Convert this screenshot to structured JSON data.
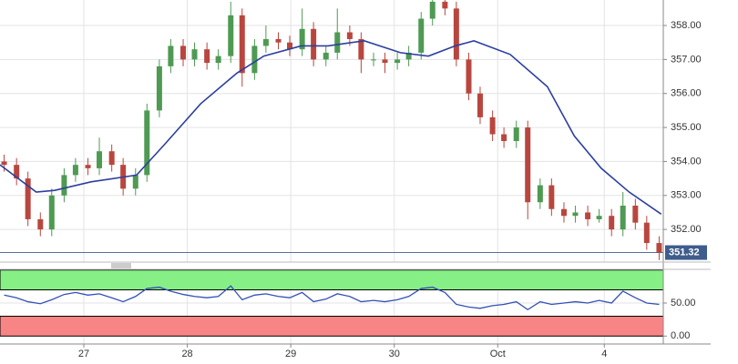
{
  "chart_data": [
    {
      "type": "candlestick",
      "x": [
        0.23,
        0.35,
        0.46,
        0.58,
        0.69,
        0.81,
        0.92,
        1.04,
        1.15,
        1.27,
        1.38,
        1.5,
        1.61,
        1.73,
        1.84,
        1.96,
        2.07,
        2.19,
        2.3,
        2.42,
        2.53,
        2.65,
        2.76,
        2.88,
        2.99,
        3.11,
        3.22,
        3.34,
        3.45,
        3.57,
        3.68,
        3.8,
        3.91,
        4.03,
        4.14,
        4.26,
        4.37,
        4.49,
        4.6,
        4.72,
        4.83,
        4.95,
        5.06,
        5.18,
        5.29,
        5.41,
        5.52,
        5.64,
        5.75,
        5.87,
        5.98,
        6.1,
        6.21,
        6.33,
        6.44,
        6.56
      ],
      "open": [
        354.0,
        353.9,
        353.5,
        352.3,
        352.0,
        353.0,
        353.6,
        353.9,
        353.8,
        354.3,
        353.9,
        353.2,
        353.6,
        355.5,
        356.8,
        357.4,
        357.0,
        357.3,
        356.9,
        357.1,
        358.3,
        356.6,
        357.4,
        357.6,
        357.5,
        357.3,
        357.9,
        357.0,
        357.2,
        357.8,
        357.6,
        357.0,
        357.0,
        356.9,
        357.0,
        357.2,
        358.2,
        358.7,
        358.5,
        357.0,
        356.0,
        355.3,
        354.8,
        354.6,
        355.0,
        352.8,
        353.3,
        352.6,
        352.4,
        352.5,
        352.3,
        352.4,
        352.0,
        352.7,
        352.2,
        351.6
      ],
      "high": [
        354.2,
        354.1,
        353.7,
        352.5,
        353.2,
        353.8,
        354.1,
        354.1,
        354.7,
        354.5,
        354.1,
        353.8,
        355.7,
        357.0,
        357.6,
        357.6,
        357.5,
        357.5,
        357.3,
        358.7,
        358.5,
        357.6,
        358.0,
        357.8,
        357.7,
        358.5,
        358.1,
        357.4,
        358.5,
        358.0,
        357.8,
        357.2,
        357.2,
        357.2,
        357.4,
        358.4,
        358.9,
        358.9,
        358.7,
        357.2,
        356.2,
        355.5,
        355.0,
        355.2,
        355.2,
        353.5,
        353.5,
        352.8,
        352.7,
        352.7,
        352.6,
        352.6,
        353.1,
        352.9,
        352.4,
        351.8
      ],
      "low": [
        353.7,
        353.3,
        352.1,
        351.8,
        351.8,
        352.8,
        353.4,
        353.6,
        353.6,
        353.7,
        353.0,
        353.0,
        353.4,
        355.3,
        356.6,
        356.8,
        356.8,
        356.7,
        356.7,
        356.9,
        356.2,
        356.4,
        357.2,
        357.3,
        357.1,
        357.1,
        356.8,
        356.8,
        357.0,
        357.4,
        356.6,
        356.8,
        356.6,
        356.7,
        356.8,
        357.0,
        358.0,
        358.3,
        356.8,
        355.8,
        355.1,
        354.6,
        354.4,
        354.4,
        352.3,
        352.6,
        352.4,
        352.2,
        352.2,
        352.1,
        352.2,
        351.8,
        351.8,
        352.0,
        351.4,
        351.1
      ],
      "close": [
        353.9,
        353.5,
        352.3,
        352.0,
        353.0,
        353.6,
        353.9,
        353.8,
        354.3,
        353.9,
        353.2,
        353.6,
        355.5,
        356.8,
        357.4,
        357.0,
        357.3,
        356.9,
        357.1,
        358.3,
        356.6,
        357.4,
        357.6,
        357.5,
        357.3,
        357.9,
        357.0,
        357.2,
        357.8,
        357.6,
        357.0,
        357.0,
        356.9,
        357.0,
        357.2,
        358.2,
        358.7,
        358.5,
        357.0,
        356.0,
        355.3,
        354.8,
        354.6,
        355.0,
        352.8,
        353.3,
        352.6,
        352.4,
        352.5,
        352.3,
        352.4,
        352.0,
        352.7,
        352.2,
        351.6,
        351.32
      ],
      "up_color": "#4e9a52",
      "down_color": "#b9463e",
      "ma": {
        "x": [
          0.19,
          0.54,
          0.72,
          1.07,
          1.51,
          1.78,
          2.13,
          2.48,
          2.74,
          3.1,
          3.36,
          3.71,
          4.06,
          4.33,
          4.59,
          4.77,
          5.12,
          5.48,
          5.74,
          6.0,
          6.27,
          6.58
        ],
        "values": [
          353.9,
          353.1,
          353.15,
          353.4,
          353.6,
          354.5,
          355.7,
          356.6,
          357.1,
          357.4,
          357.4,
          357.55,
          357.2,
          357.1,
          357.4,
          357.55,
          357.15,
          356.2,
          354.75,
          353.8,
          353.1,
          352.45
        ],
        "color": "#2c3f9e"
      },
      "last_price": 351.32,
      "last_price_color": "#3f5d8c",
      "xlim": [
        0.19,
        6.6
      ],
      "ylim": [
        351.04,
        358.75
      ],
      "yticks": [
        {
          "value": 352,
          "label": "352.00"
        },
        {
          "value": 353,
          "label": "353.00"
        },
        {
          "value": 354,
          "label": "354.00"
        },
        {
          "value": 355,
          "label": "355.00"
        },
        {
          "value": 356,
          "label": "356.00"
        },
        {
          "value": 357,
          "label": "357.00"
        },
        {
          "value": 358,
          "label": "358.00"
        }
      ],
      "grid": true
    },
    {
      "type": "line",
      "x": [
        0.23,
        0.35,
        0.46,
        0.58,
        0.69,
        0.81,
        0.92,
        1.04,
        1.15,
        1.27,
        1.38,
        1.5,
        1.61,
        1.73,
        1.84,
        1.96,
        2.07,
        2.19,
        2.3,
        2.42,
        2.53,
        2.65,
        2.76,
        2.88,
        2.99,
        3.11,
        3.22,
        3.34,
        3.45,
        3.57,
        3.68,
        3.8,
        3.91,
        4.03,
        4.14,
        4.26,
        4.37,
        4.49,
        4.6,
        4.72,
        4.83,
        4.95,
        5.06,
        5.18,
        5.29,
        5.41,
        5.52,
        5.64,
        5.75,
        5.87,
        5.98,
        6.1,
        6.21,
        6.33,
        6.44,
        6.56
      ],
      "values": [
        62,
        58,
        52,
        49,
        55,
        63,
        66,
        62,
        64,
        58,
        52,
        60,
        72,
        74,
        68,
        63,
        60,
        58,
        60,
        76,
        55,
        62,
        64,
        60,
        58,
        66,
        52,
        56,
        64,
        60,
        52,
        54,
        52,
        55,
        60,
        72,
        74,
        66,
        48,
        44,
        42,
        46,
        48,
        52,
        40,
        52,
        48,
        50,
        52,
        50,
        54,
        50,
        68,
        58,
        50,
        48
      ],
      "color": "#3350b5",
      "bands": [
        {
          "from": 70,
          "to": 100,
          "color": "#86f086"
        },
        {
          "from": 0,
          "to": 30,
          "color": "#f88585"
        }
      ],
      "xlim": [
        0.19,
        6.6
      ],
      "ylim": [
        -12,
        101
      ],
      "yticks": [
        {
          "value": 0,
          "label": "0.00"
        },
        {
          "value": 50,
          "label": "50.00"
        }
      ],
      "xticks": [
        {
          "value": 1,
          "label": "27"
        },
        {
          "value": 2,
          "label": "28"
        },
        {
          "value": 3,
          "label": "29"
        },
        {
          "value": 4,
          "label": "30"
        },
        {
          "value": 5,
          "label": "Oct"
        },
        {
          "value": 6.03,
          "label": "4"
        }
      ],
      "grid": true
    }
  ]
}
